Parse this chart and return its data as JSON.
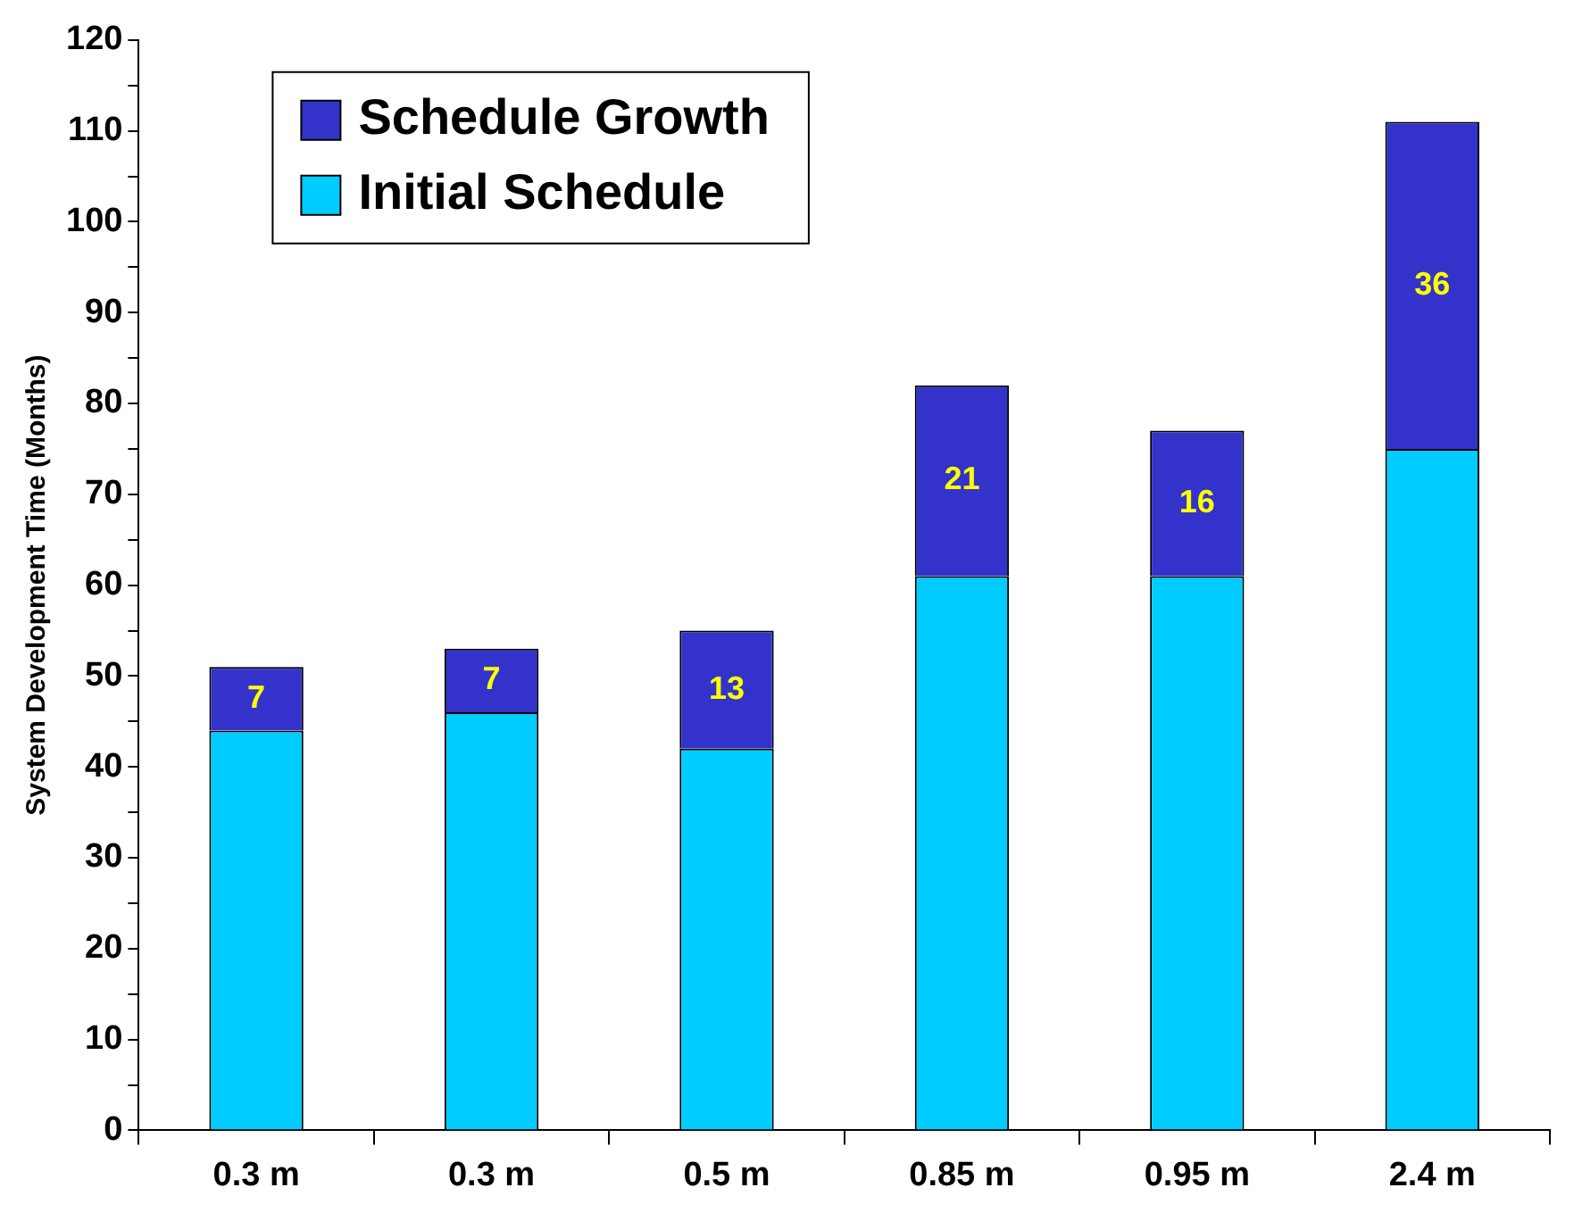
{
  "chart_data": {
    "type": "bar",
    "ylabel": "System Development Time (Months)",
    "categories": [
      "0.3 m",
      "0.3 m",
      "0.5 m",
      "0.85 m",
      "0.95 m",
      "2.4 m"
    ],
    "stacked": true,
    "legend": "top left",
    "ylim": [
      0,
      120
    ],
    "yticks": [
      0,
      {
        "value": 5,
        "label": null
      },
      10,
      {
        "value": 15,
        "label": null
      },
      20,
      {
        "value": 25,
        "label": null
      },
      30,
      {
        "value": 35,
        "label": null
      },
      40,
      {
        "value": 45,
        "label": null
      },
      50,
      {
        "value": 55,
        "label": null
      },
      60,
      {
        "value": 65,
        "label": null
      },
      70,
      {
        "value": 75,
        "label": null
      },
      80,
      {
        "value": 85,
        "label": null
      },
      90,
      {
        "value": 95,
        "label": null
      },
      100,
      {
        "value": 105,
        "label": null
      },
      110,
      {
        "value": 115,
        "label": null
      },
      120
    ],
    "series": [
      {
        "name": "Initial Schedule",
        "color": "#00ccff",
        "values": [
          44,
          46,
          42,
          61,
          61,
          75
        ]
      },
      {
        "name": "Schedule Growth",
        "color": "#3333cc",
        "values": [
          7,
          7,
          13,
          21,
          16,
          36
        ],
        "value_labels": [
          "7",
          "7",
          "13",
          "21",
          "16",
          "36"
        ]
      }
    ]
  }
}
